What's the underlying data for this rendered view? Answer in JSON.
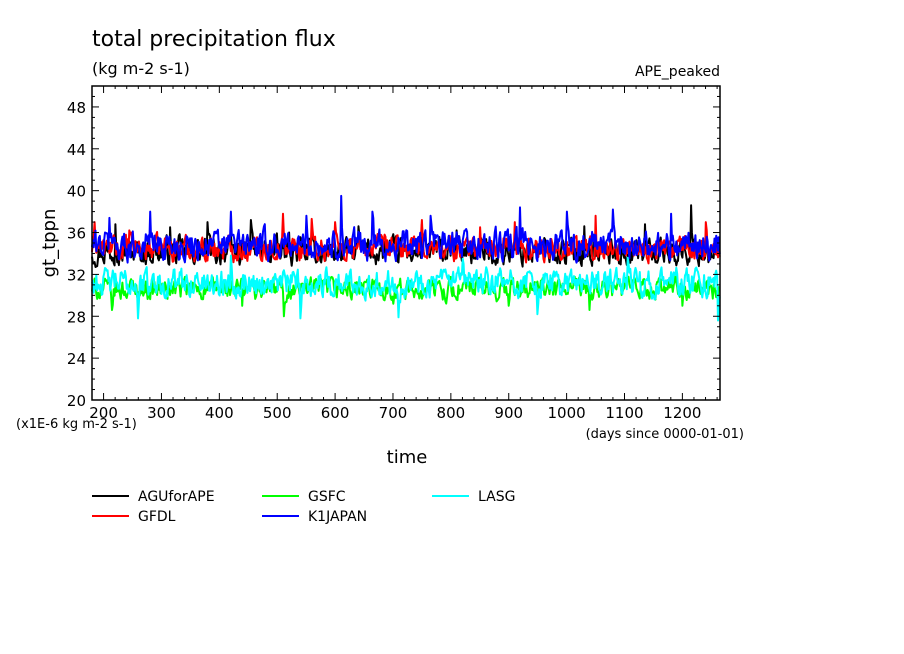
{
  "chart_data": {
    "type": "line",
    "title": "total precipitation flux",
    "subtitle": "(kg m-2 s-1)",
    "annotation": "APE_peaked",
    "xlabel": "time",
    "ylabel": "gt_tppn",
    "x_unit_label": "(days since 0000-01-01)",
    "y_unit_label": "(x1E-6 kg m-2 s-1)",
    "xlim": [
      180,
      1265
    ],
    "ylim": [
      20,
      50
    ],
    "x_ticks": [
      200,
      300,
      400,
      500,
      600,
      700,
      800,
      900,
      1000,
      1100,
      1200
    ],
    "y_ticks": [
      20,
      24,
      28,
      32,
      36,
      40,
      44,
      48
    ],
    "grid": false,
    "legend_position": "below-left",
    "series": [
      {
        "name": "AGUforAPE",
        "color": "#000000",
        "mean": 34.2,
        "amplitude": 2.0,
        "spikes": [
          [
            220,
            36.8
          ],
          [
            315,
            36.5
          ],
          [
            380,
            37.0
          ],
          [
            455,
            37.2
          ],
          [
            520,
            36.0
          ],
          [
            640,
            36.6
          ],
          [
            750,
            36.8
          ],
          [
            810,
            36.2
          ],
          [
            1030,
            36.6
          ],
          [
            1135,
            36.8
          ],
          [
            1215,
            38.6
          ]
        ]
      },
      {
        "name": "GFDL",
        "color": "#ff0000",
        "mean": 34.5,
        "amplitude": 1.8,
        "spikes": [
          [
            185,
            37.0
          ],
          [
            245,
            36.2
          ],
          [
            510,
            37.8
          ],
          [
            560,
            37.3
          ],
          [
            600,
            37.0
          ],
          [
            750,
            37.2
          ],
          [
            850,
            36.5
          ],
          [
            910,
            37.0
          ],
          [
            1050,
            37.6
          ],
          [
            1240,
            37.0
          ]
        ]
      },
      {
        "name": "GSFC",
        "color": "#00ff00",
        "mean": 30.6,
        "amplitude": 1.6,
        "spikes": [
          [
            215,
            28.6
          ],
          [
            440,
            29.0
          ],
          [
            512,
            28.0
          ],
          [
            700,
            29.2
          ],
          [
            900,
            29.0
          ],
          [
            1040,
            28.6
          ],
          [
            1200,
            29.0
          ]
        ]
      },
      {
        "name": "K1JAPAN",
        "color": "#0000ff",
        "mean": 34.8,
        "amplitude": 2.2,
        "spikes": [
          [
            210,
            37.4
          ],
          [
            280,
            38.0
          ],
          [
            420,
            38.0
          ],
          [
            550,
            37.6
          ],
          [
            610,
            39.5
          ],
          [
            665,
            38.0
          ],
          [
            765,
            37.6
          ],
          [
            920,
            38.4
          ],
          [
            1000,
            38.0
          ],
          [
            1080,
            38.2
          ],
          [
            1180,
            37.8
          ]
        ]
      },
      {
        "name": "LASG",
        "color": "#00ffff",
        "mean": 31.2,
        "amplitude": 2.0,
        "spikes": [
          [
            260,
            27.8
          ],
          [
            420,
            33.8
          ],
          [
            540,
            27.8
          ],
          [
            710,
            27.9
          ],
          [
            820,
            33.5
          ],
          [
            950,
            28.2
          ],
          [
            1105,
            33.6
          ],
          [
            1262,
            27.6
          ]
        ]
      }
    ]
  }
}
